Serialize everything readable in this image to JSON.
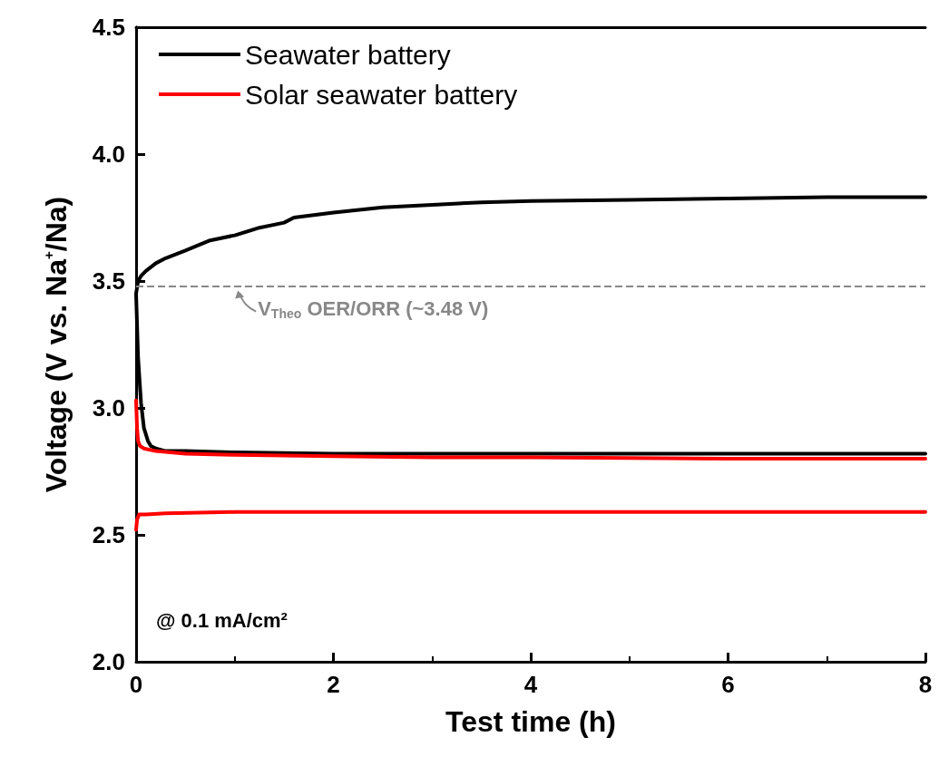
{
  "chart_data": {
    "type": "line",
    "xlabel": "Test time (h)",
    "ylabel": "Voltage (V vs. Na$^{+}$/Na)",
    "xlim": [
      0,
      8
    ],
    "xticks": [
      0,
      2,
      4,
      6,
      8
    ],
    "ylim": [
      2.0,
      4.5
    ],
    "yticks": [
      {
        "value": 2,
        "label": "2.0"
      },
      2.5,
      {
        "value": 3,
        "label": "3.0"
      },
      3.5,
      {
        "value": 4,
        "label": "4.0"
      },
      4.5
    ],
    "grid": false,
    "legend": "top left",
    "marker": "none",
    "line_style": "solid",
    "series": [
      {
        "name": "Seawater battery",
        "color": "#000000",
        "x": [
          0,
          0.02,
          0.05,
          0.1,
          0.2,
          0.3,
          0.5,
          0.75,
          1,
          1.25,
          1.5,
          1.6,
          1.8,
          2,
          2.5,
          3,
          3.5,
          4,
          5,
          6,
          7,
          8,
          null,
          0,
          0.02,
          0.05,
          0.08,
          0.12,
          0.15,
          0.2,
          0.3,
          0.5,
          1,
          2,
          4,
          6,
          8
        ],
        "values": [
          3.45,
          3.5,
          3.52,
          3.54,
          3.57,
          3.59,
          3.62,
          3.66,
          3.68,
          3.71,
          3.73,
          3.75,
          3.76,
          3.77,
          3.79,
          3.8,
          3.81,
          3.815,
          3.82,
          3.825,
          3.83,
          3.83,
          null,
          3.45,
          3.2,
          3.02,
          2.92,
          2.87,
          2.85,
          2.84,
          2.83,
          2.83,
          2.825,
          2.82,
          2.82,
          2.82,
          2.82
        ]
      },
      {
        "name": "Solar seawater battery",
        "color": "#ff0000",
        "x": [
          0,
          0.01,
          0.03,
          0.05,
          0.1,
          0.3,
          1,
          2,
          3,
          4,
          5,
          6,
          7,
          8,
          null,
          0,
          0.01,
          0.02,
          0.04,
          0.08,
          0.2,
          0.5,
          1,
          2,
          3,
          4,
          6,
          8
        ],
        "values": [
          2.52,
          2.56,
          2.58,
          2.58,
          2.58,
          2.585,
          2.59,
          2.59,
          2.59,
          2.59,
          2.59,
          2.59,
          2.59,
          2.59,
          null,
          3.03,
          2.92,
          2.87,
          2.85,
          2.84,
          2.83,
          2.82,
          2.815,
          2.81,
          2.805,
          2.805,
          2.8,
          2.8
        ]
      }
    ],
    "ref_lines": [
      {
        "axis": "y",
        "value": 3.48,
        "color": "#888888",
        "line_style": "dashed"
      }
    ],
    "annotations": [
      {
        "text": "V$_{Theo}$ OER/ORR (~3.48 V)",
        "x": 1.05,
        "y": 3.48
      },
      "@ 0.1 mA/cm²"
    ]
  }
}
